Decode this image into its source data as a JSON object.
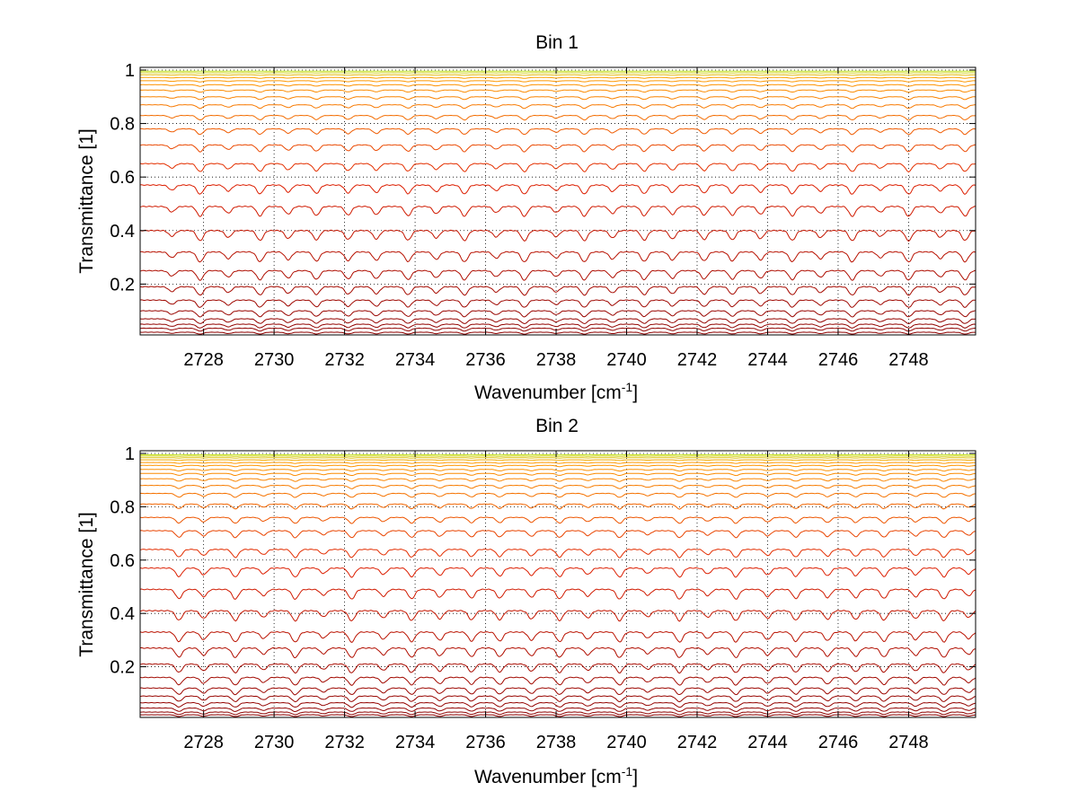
{
  "figure": {
    "background": "#ffffff",
    "grid": true,
    "grid_style": "dotted",
    "line_color_dark": "#8b0000",
    "line_color_mid": "#e02000",
    "line_color_light": "#ff9a00",
    "line_color_top": "#b8f02a"
  },
  "chart_data": [
    {
      "type": "line",
      "title": "Bin 1",
      "xlabel": "Wavenumber [cm",
      "xlabel_sup": "-1",
      "xlabel_end": "]",
      "ylabel": "Transmittance [1]",
      "xlim": [
        2726.2,
        2749.9
      ],
      "ylim": [
        0.01,
        1.01
      ],
      "xticks": [
        2728,
        2730,
        2732,
        2734,
        2736,
        2738,
        2740,
        2742,
        2744,
        2746,
        2748
      ],
      "yticks": [
        0.2,
        0.4,
        0.6,
        0.8,
        1
      ],
      "ytick_labels": [
        "0.2",
        "0.4",
        "0.6",
        "0.8",
        "1"
      ],
      "series_levels": [
        0.02,
        0.035,
        0.05,
        0.07,
        0.1,
        0.14,
        0.19,
        0.25,
        0.32,
        0.4,
        0.49,
        0.57,
        0.65,
        0.72,
        0.78,
        0.83,
        0.87,
        0.9,
        0.925,
        0.945,
        0.96,
        0.972,
        0.982,
        0.99,
        0.996
      ],
      "absorption_lines": [
        2727.1,
        2727.9,
        2728.7,
        2729.6,
        2730.4,
        2731.2,
        2732.1,
        2732.9,
        2733.8,
        2734.6,
        2735.4,
        2736.3,
        2737.1,
        2738.0,
        2738.8,
        2739.6,
        2740.5,
        2741.3,
        2742.2,
        2743.0,
        2743.8,
        2744.7,
        2745.5,
        2746.4,
        2747.2,
        2748.0,
        2748.9,
        2749.6
      ]
    },
    {
      "type": "line",
      "title": "Bin 2",
      "xlabel": "Wavenumber [cm",
      "xlabel_sup": "-1",
      "xlabel_end": "]",
      "ylabel": "Transmittance [1]",
      "xlim": [
        2726.2,
        2749.9
      ],
      "ylim": [
        0.01,
        1.01
      ],
      "xticks": [
        2728,
        2730,
        2732,
        2734,
        2736,
        2738,
        2740,
        2742,
        2744,
        2746,
        2748
      ],
      "yticks": [
        0.2,
        0.4,
        0.6,
        0.8,
        1
      ],
      "ytick_labels": [
        "0.2",
        "0.4",
        "0.6",
        "0.8",
        "1"
      ],
      "series_levels": [
        0.02,
        0.03,
        0.045,
        0.065,
        0.09,
        0.12,
        0.16,
        0.21,
        0.27,
        0.33,
        0.41,
        0.49,
        0.57,
        0.64,
        0.71,
        0.76,
        0.81,
        0.85,
        0.88,
        0.905,
        0.925,
        0.94,
        0.955,
        0.966,
        0.976,
        0.984,
        0.99,
        0.995
      ],
      "absorption_lines": [
        2727.3,
        2728.0,
        2728.9,
        2729.7,
        2730.6,
        2731.4,
        2732.2,
        2733.1,
        2733.9,
        2734.7,
        2735.6,
        2736.4,
        2737.3,
        2738.1,
        2738.9,
        2739.8,
        2740.6,
        2741.5,
        2742.3,
        2743.1,
        2744.0,
        2744.8,
        2745.7,
        2746.5,
        2747.3,
        2748.2,
        2749.0,
        2749.7
      ]
    }
  ]
}
